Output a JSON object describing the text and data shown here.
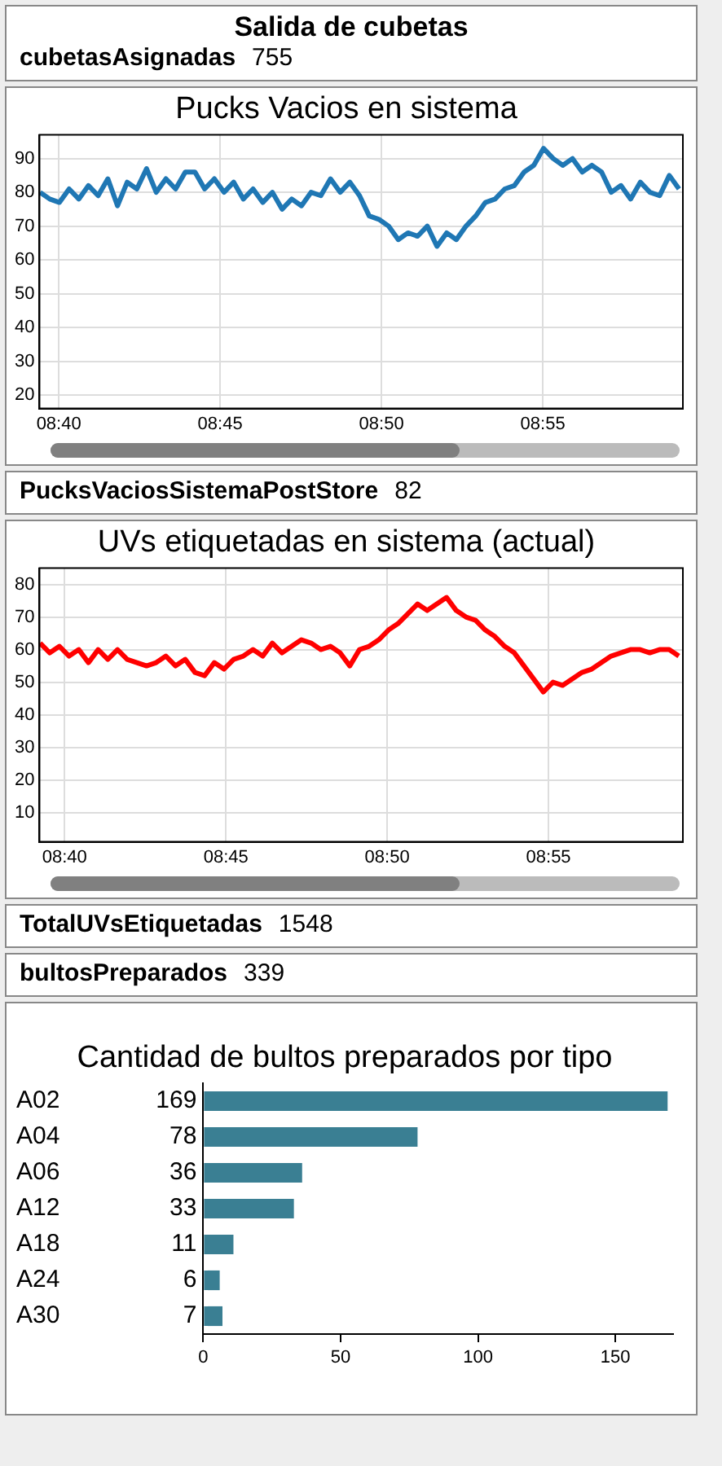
{
  "chart_data": [
    {
      "type": "other",
      "title": "Salida de cubetas",
      "annotations": [
        "cubetasAsignadas",
        "755"
      ]
    },
    {
      "type": "line",
      "title": "Pucks Vacios en sistema",
      "color": "#1f77b4",
      "grid": true,
      "marker": "none",
      "line_style": "solid",
      "legend": false,
      "xlim": [
        8.6567,
        8.989
      ],
      "xticks": [
        {
          "value": 8.66667,
          "label": "08:40"
        },
        {
          "value": 8.75,
          "label": "08:45"
        },
        {
          "value": 8.83333,
          "label": "08:50"
        },
        {
          "value": 8.91667,
          "label": "08:55"
        }
      ],
      "ylim": [
        16,
        97
      ],
      "yticks": [
        20,
        30,
        40,
        50,
        60,
        70,
        80,
        90
      ],
      "x": [
        8.657,
        8.662,
        8.667,
        8.672,
        8.677,
        8.682,
        8.687,
        8.692,
        8.697,
        8.702,
        8.707,
        8.712,
        8.717,
        8.722,
        8.727,
        8.732,
        8.737,
        8.742,
        8.747,
        8.752,
        8.757,
        8.762,
        8.767,
        8.772,
        8.777,
        8.782,
        8.787,
        8.792,
        8.797,
        8.802,
        8.807,
        8.812,
        8.817,
        8.822,
        8.827,
        8.832,
        8.837,
        8.842,
        8.847,
        8.852,
        8.857,
        8.862,
        8.867,
        8.872,
        8.877,
        8.882,
        8.887,
        8.892,
        8.897,
        8.902,
        8.907,
        8.912,
        8.917,
        8.922,
        8.927,
        8.932,
        8.937,
        8.942,
        8.947,
        8.952,
        8.957,
        8.962,
        8.967,
        8.972,
        8.977,
        8.982,
        8.987
      ],
      "values": [
        80,
        78,
        77,
        81,
        78,
        82,
        79,
        84,
        76,
        83,
        81,
        87,
        80,
        84,
        81,
        86,
        86,
        81,
        84,
        80,
        83,
        78,
        81,
        77,
        80,
        75,
        78,
        76,
        80,
        79,
        84,
        80,
        83,
        79,
        73,
        72,
        70,
        66,
        68,
        67,
        70,
        64,
        68,
        66,
        70,
        73,
        77,
        78,
        81,
        82,
        86,
        88,
        93,
        90,
        88,
        90,
        86,
        88,
        86,
        80,
        82,
        78,
        83,
        80,
        79,
        85,
        81
      ]
    },
    {
      "type": "other",
      "annotations": [
        "PucksVaciosSistemaPostStore",
        "82"
      ]
    },
    {
      "type": "line",
      "title": "UVs etiquetadas en sistema (actual)",
      "color": "#ff0000",
      "grid": true,
      "marker": "none",
      "line_style": "solid",
      "legend": false,
      "xlim": [
        8.6537,
        8.9861
      ],
      "xticks": [
        {
          "value": 8.66667,
          "label": "08:40"
        },
        {
          "value": 8.75,
          "label": "08:45"
        },
        {
          "value": 8.83333,
          "label": "08:50"
        },
        {
          "value": 8.91667,
          "label": "08:55"
        }
      ],
      "ylim": [
        1,
        85
      ],
      "yticks": [
        10,
        20,
        30,
        40,
        50,
        60,
        70,
        80
      ],
      "x": [
        8.654,
        8.659,
        8.664,
        8.669,
        8.674,
        8.679,
        8.684,
        8.689,
        8.694,
        8.699,
        8.704,
        8.709,
        8.714,
        8.719,
        8.724,
        8.729,
        8.734,
        8.739,
        8.744,
        8.749,
        8.754,
        8.759,
        8.764,
        8.769,
        8.774,
        8.779,
        8.784,
        8.789,
        8.794,
        8.799,
        8.804,
        8.809,
        8.814,
        8.819,
        8.824,
        8.829,
        8.834,
        8.839,
        8.844,
        8.849,
        8.854,
        8.859,
        8.864,
        8.869,
        8.874,
        8.879,
        8.884,
        8.889,
        8.894,
        8.899,
        8.904,
        8.909,
        8.914,
        8.919,
        8.924,
        8.929,
        8.934,
        8.939,
        8.944,
        8.949,
        8.954,
        8.959,
        8.964,
        8.969,
        8.974,
        8.979,
        8.984
      ],
      "values": [
        62,
        59,
        61,
        58,
        60,
        56,
        60,
        57,
        60,
        57,
        56,
        55,
        56,
        58,
        55,
        57,
        53,
        52,
        56,
        54,
        57,
        58,
        60,
        58,
        62,
        59,
        61,
        63,
        62,
        60,
        61,
        59,
        55,
        60,
        61,
        63,
        66,
        68,
        71,
        74,
        72,
        74,
        76,
        72,
        70,
        69,
        66,
        64,
        61,
        59,
        55,
        51,
        47,
        50,
        49,
        51,
        53,
        54,
        56,
        58,
        59,
        60,
        60,
        59,
        60,
        60,
        58
      ]
    },
    {
      "type": "other",
      "annotations": [
        "TotalUVsEtiquetadas",
        "1548"
      ]
    },
    {
      "type": "other",
      "annotations": [
        "bultosPreparados",
        "339"
      ]
    },
    {
      "type": "bar",
      "orientation": "horizontal",
      "title": "Cantidad de bultos preparados por tipo",
      "color": "#3a7f93",
      "grid": false,
      "legend": false,
      "data_labels": true,
      "categories": [
        "A02",
        "A04",
        "A06",
        "A12",
        "A18",
        "A24",
        "A30"
      ],
      "values": [
        169,
        78,
        36,
        33,
        11,
        6,
        7
      ],
      "xlim": [
        0,
        171
      ],
      "xticks": [
        0,
        50,
        100,
        150
      ]
    }
  ]
}
